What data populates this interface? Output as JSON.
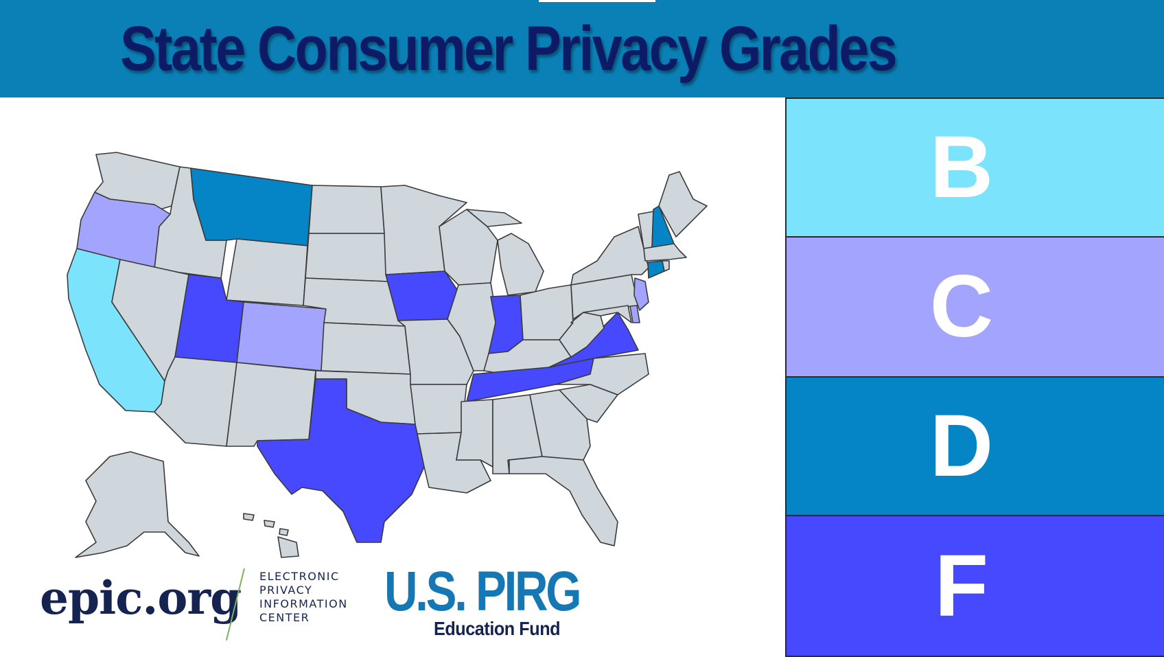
{
  "title": "State Consumer Privacy Grades",
  "legend": [
    {
      "grade": "B",
      "color": "#7ce3fd"
    },
    {
      "grade": "C",
      "color": "#a3a4fd"
    },
    {
      "grade": "D",
      "color": "#0584c6"
    },
    {
      "grade": "F",
      "color": "#4649fd"
    }
  ],
  "map_colors": {
    "no_law": "#d0d7dc",
    "B": "#7ce3fd",
    "C": "#a3a4fd",
    "D": "#0584c6",
    "F": "#4649fd"
  },
  "states": {
    "B": [
      "California"
    ],
    "C": [
      "Oregon",
      "Colorado",
      "New Jersey",
      "Delaware"
    ],
    "D": [
      "Montana",
      "New Hampshire",
      "Connecticut"
    ],
    "F": [
      "Utah",
      "Texas",
      "Iowa",
      "Indiana",
      "Tennessee",
      "Virginia"
    ]
  },
  "logos": {
    "epic_name": "epic.org",
    "epic_line1": "ELECTRONIC",
    "epic_line2": "PRIVACY",
    "epic_line3": "INFORMATION",
    "epic_line4": "CENTER",
    "pirg_name": "U.S. PIRG",
    "pirg_sub": "Education Fund"
  }
}
